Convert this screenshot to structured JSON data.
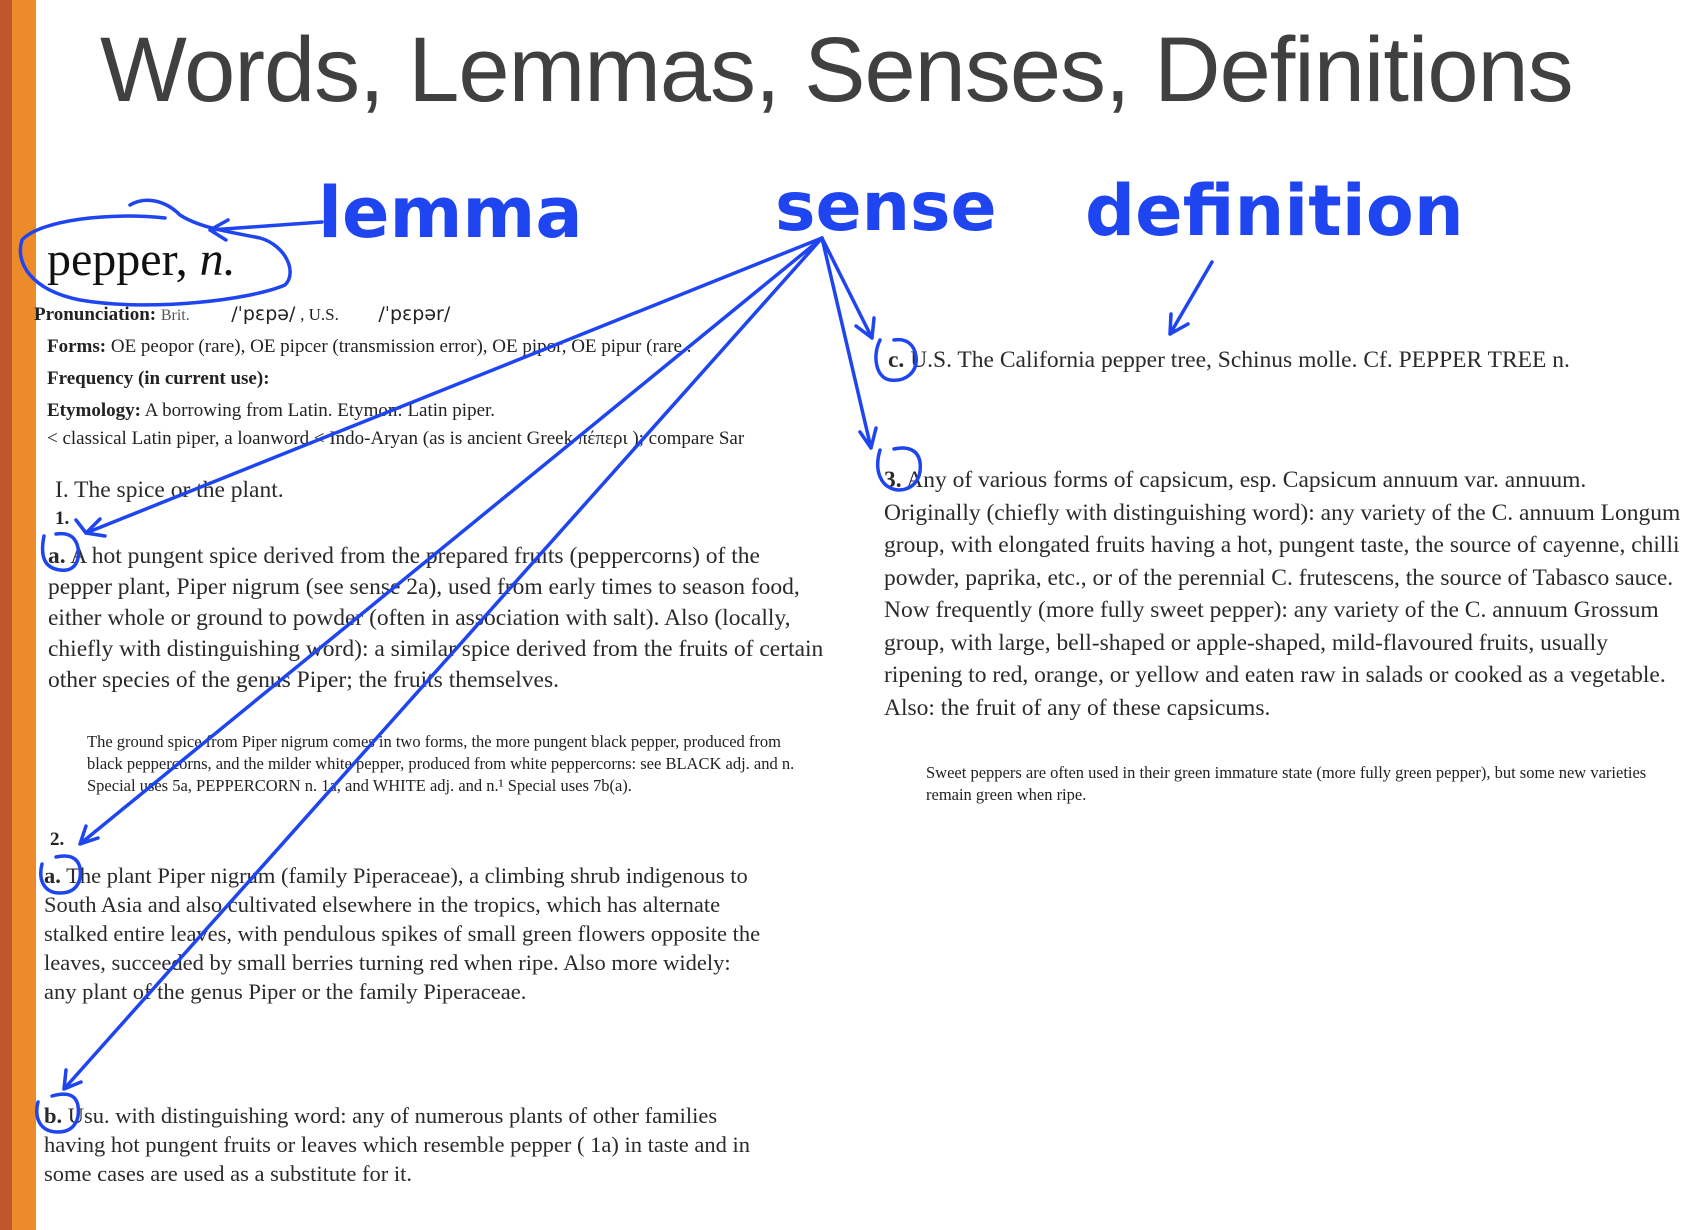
{
  "title": "Words, Lemmas, Senses, Definitions",
  "labels": {
    "lemma": "lemma",
    "sense": "sense",
    "definition": "definition"
  },
  "headword": {
    "word": "pepper,",
    "pos": "n."
  },
  "pronunciation": {
    "label": "Pronunciation:",
    "brit": "Brit.",
    "ipa_brit": "/ˈpɛpə/",
    "us": ", U.S.",
    "ipa_us": "/ˈpɛpər/"
  },
  "forms": {
    "label": "Forms:",
    "text": "OE peopor (rare), OE pipcer (transmission error), OE pipor, OE pipur (rare ."
  },
  "frequency": {
    "label": "Frequency (in current use):"
  },
  "etymology": {
    "label": "Etymology:",
    "text": "A borrowing from Latin. Etymon: Latin piper.",
    "line2": "< classical Latin piper, a loanword < Indo-Aryan (as is ancient Greek πέπερι ); compare Sar"
  },
  "section_I": "I. The spice or the plant.",
  "sense1": {
    "number": "1.",
    "a_label": "a.",
    "a_text": "A hot pungent spice derived from the prepared fruits (peppercorns) of the pepper plant, Piper nigrum (see sense 2a), used from early times to season food, either whole or ground to powder (often in association with salt). Also (locally, chiefly with distinguishing word): a similar spice derived from the fruits of certain other species of the genus Piper; the fruits themselves.",
    "note": "The ground spice from Piper nigrum comes in two forms, the more pungent black pepper, produced from black peppercorns, and the milder white pepper, produced from white peppercorns: see BLACK adj. and n. Special uses 5a, PEPPERCORN n. 1a, and WHITE adj. and n.¹ Special uses 7b(a)."
  },
  "sense2": {
    "number": "2.",
    "a_label": "a.",
    "a_text": "The plant Piper nigrum (family Piperaceae), a climbing shrub indigenous to South Asia and also cultivated elsewhere in the tropics, which has alternate stalked entire leaves, with pendulous spikes of small green flowers opposite the leaves, succeeded by small berries turning red when ripe. Also more widely: any plant of the genus Piper or the family Piperaceae.",
    "b_label": "b.",
    "b_text": "Usu. with distinguishing word: any of numerous plants of other families having hot pungent fruits or leaves which resemble pepper ( 1a) in taste and in some cases are used as a substitute for it."
  },
  "sense2c": {
    "label": "c.",
    "text": "U.S. The California pepper tree, Schinus molle. Cf. PEPPER TREE n."
  },
  "sense3": {
    "label": "3.",
    "text": "Any of various forms of capsicum, esp. Capsicum annuum var. annuum. Originally (chiefly with distinguishing word): any variety of the C. annuum Longum group, with elongated fruits having a hot, pungent taste, the source of cayenne, chilli powder, paprika, etc., or of the perennial C. frutescens, the source of Tabasco sauce. Now frequently (more fully sweet pepper): any variety of the C. annuum Grossum group, with large, bell-shaped or apple-shaped, mild-flavoured fruits, usually ripening to red, orange, or yellow and eaten raw in salads or cooked as a vegetable. Also: the fruit of any of these capsicums.",
    "note": "Sweet peppers are often used in their green immature state (more fully green pepper), but some new varieties remain green when ripe."
  },
  "colors": {
    "annotation": "#1f45f0",
    "bar_dark": "#c0562b",
    "bar_light": "#ed8b2b"
  }
}
